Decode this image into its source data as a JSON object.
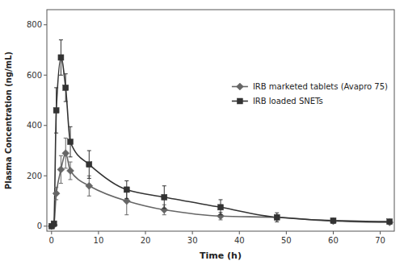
{
  "chart_data": {
    "type": "line",
    "xlabel": "Time (h)",
    "ylabel": "Plasma Concentration  (ng/mL)",
    "xlim": [
      -1,
      73
    ],
    "ylim": [
      -20,
      860
    ],
    "xticks": [
      0,
      10,
      20,
      30,
      40,
      50,
      60,
      70
    ],
    "yticks": [
      0,
      200,
      400,
      600,
      800
    ],
    "grid": false,
    "legend": "right",
    "x": [
      0,
      0.5,
      1,
      2,
      3,
      4,
      8,
      16,
      24,
      36,
      48,
      60,
      72
    ],
    "series": [
      {
        "name": "IRB marketed tablets (Avapro 75)",
        "color": "#666666",
        "marker": "diamond",
        "values": [
          0,
          5,
          130,
          225,
          290,
          220,
          160,
          100,
          65,
          40,
          35,
          20,
          15
        ],
        "errors": [
          0,
          5,
          25,
          55,
          60,
          35,
          40,
          55,
          20,
          15,
          10,
          8,
          5
        ]
      },
      {
        "name": "IRB loaded SNETs",
        "color": "#333333",
        "marker": "square",
        "values": [
          0,
          10,
          460,
          670,
          550,
          335,
          245,
          145,
          115,
          75,
          35,
          22,
          18
        ],
        "errors": [
          0,
          5,
          90,
          70,
          55,
          60,
          55,
          35,
          45,
          30,
          18,
          8,
          6
        ]
      }
    ]
  }
}
